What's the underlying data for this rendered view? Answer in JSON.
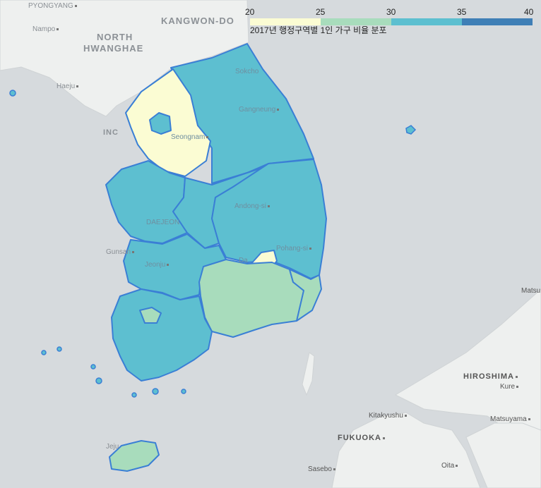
{
  "legend": {
    "title": "2017년 행정구역별 1인 가구 비율 분포",
    "ticks": [
      "20",
      "25",
      "30",
      "35",
      "40"
    ],
    "colors": [
      "#fbfcd3",
      "#a8dcbc",
      "#5dbfd0",
      "#3f7fb6"
    ]
  },
  "map_labels": {
    "pyongyang": "PYONGYANG",
    "kangwon_do": "KANGWON-DO",
    "nampo": "Nampo",
    "north_hwanghae_1": "NORTH",
    "north_hwanghae_2": "HWANGHAE",
    "haeju": "Haeju",
    "incheon": "INC",
    "sokcho": "Sokcho",
    "gangneung": "Gangneung",
    "seongnam": "Seongnam",
    "andong": "Andong-si",
    "daejeon": "DAEJEON",
    "pohang": "Pohang-si",
    "gunsan": "Gunsan",
    "jeonju": "Jeonju",
    "daegu": "Da",
    "kitakyushu": "Kitakyushu",
    "fukuoka": "FUKUOKA",
    "sasebo": "Sasebo",
    "oita": "Oita",
    "hiroshima": "HIROSHIMA",
    "kure": "Kure",
    "matsuyama": "Matsuyama",
    "matsue": "Matsu",
    "jeju": "Jeju"
  },
  "regions": {
    "seoul_metro": {
      "color": "#fbfcd3"
    },
    "gangwon": {
      "color": "#5dbfd0"
    },
    "chungbuk": {
      "color": "#5dbfd0"
    },
    "chungnam": {
      "color": "#5dbfd0"
    },
    "gyeongbuk": {
      "color": "#5dbfd0"
    },
    "jeonbuk": {
      "color": "#5dbfd0"
    },
    "jeonnam": {
      "color": "#5dbfd0"
    },
    "gyeongnam": {
      "color": "#a8dcbc"
    },
    "daegu": {
      "color": "#fbfcd3"
    },
    "ulsan_busan": {
      "color": "#a8dcbc"
    },
    "gwangju": {
      "color": "#a8dcbc"
    },
    "jeju": {
      "color": "#a8dcbc"
    },
    "seoul_core": {
      "color": "#5dbfd0"
    }
  },
  "colors": {
    "border": "#3a7fd5",
    "land": "#eef0ef",
    "sea": "#d6dadd"
  }
}
